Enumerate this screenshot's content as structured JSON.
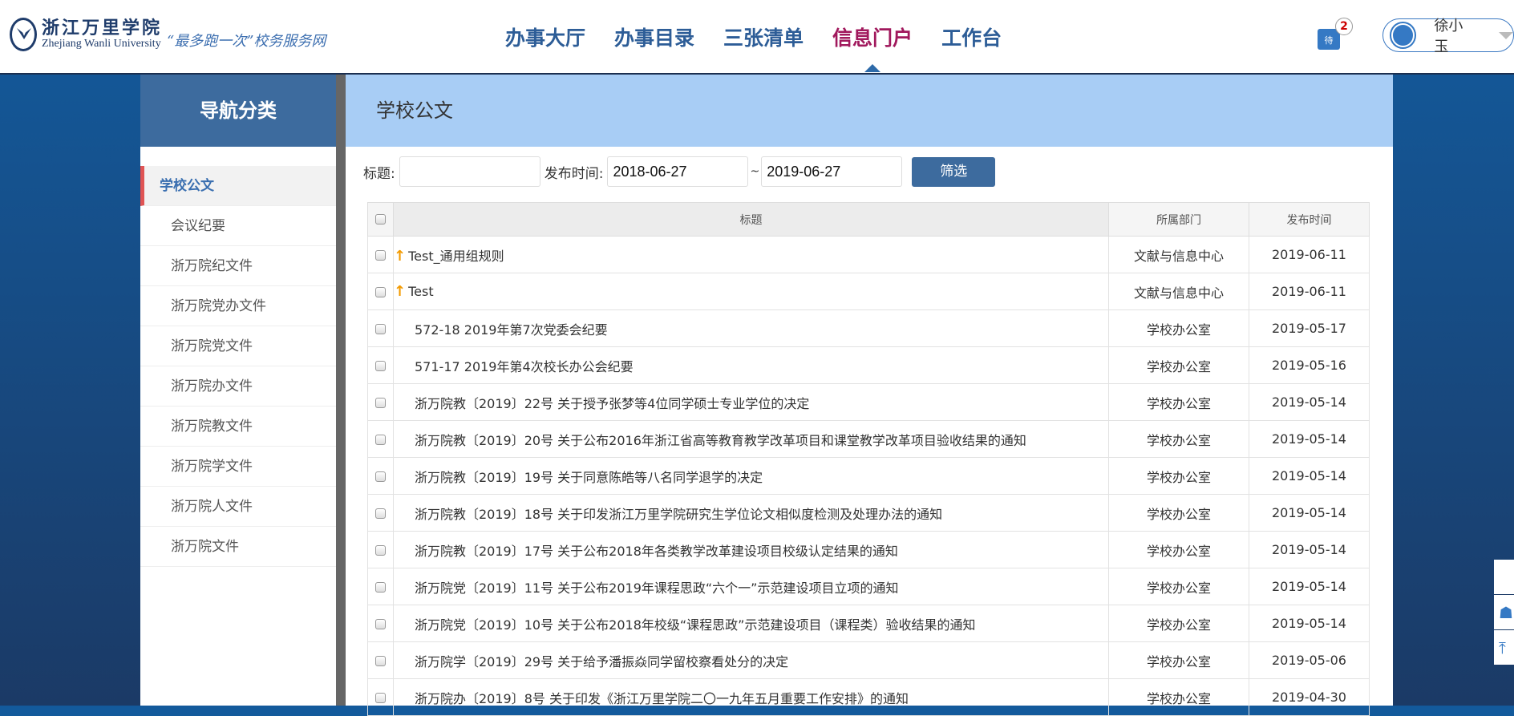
{
  "header": {
    "logo_cn": "浙江万里学院",
    "logo_en": "Zhejiang Wanli University",
    "slogan": "“最多跑一次”校务服务网",
    "nav": [
      {
        "label": "办事大厅"
      },
      {
        "label": "办事目录"
      },
      {
        "label": "三张清单"
      },
      {
        "label": "信息门户",
        "active": true
      },
      {
        "label": "工作台"
      }
    ],
    "todo_icon_label": "待",
    "todo_count": "2",
    "user_name": "徐小玉"
  },
  "sidebar": {
    "title": "导航分类",
    "items": [
      {
        "label": "学校公文",
        "active": true
      },
      {
        "label": "会议纪要"
      },
      {
        "label": "浙万院纪文件"
      },
      {
        "label": "浙万院党办文件"
      },
      {
        "label": "浙万院党文件"
      },
      {
        "label": "浙万院办文件"
      },
      {
        "label": "浙万院教文件"
      },
      {
        "label": "浙万院学文件"
      },
      {
        "label": "浙万院人文件"
      },
      {
        "label": "浙万院文件"
      }
    ]
  },
  "main": {
    "title": "学校公文",
    "filter": {
      "title_label": "标题:",
      "title_value": "",
      "date_label": "发布时间:",
      "date_from": "2018-06-27",
      "sep": "~",
      "date_to": "2019-06-27",
      "button": "筛选"
    },
    "table": {
      "columns": [
        "标题",
        "所属部门",
        "发布时间"
      ],
      "rows": [
        {
          "title": "Test_通用组规则",
          "dept": "文献与信息中心",
          "date": "2019-06-11",
          "top": true
        },
        {
          "title": "Test",
          "dept": "文献与信息中心",
          "date": "2019-06-11",
          "top": true
        },
        {
          "title": "572-18 2019年第7次党委会纪要",
          "dept": "学校办公室",
          "date": "2019-05-17"
        },
        {
          "title": "571-17 2019年第4次校长办公会纪要",
          "dept": "学校办公室",
          "date": "2019-05-16"
        },
        {
          "title": "浙万院教〔2019〕22号 关于授予张梦等4位同学硕士专业学位的决定",
          "dept": "学校办公室",
          "date": "2019-05-14"
        },
        {
          "title": "浙万院教〔2019〕20号 关于公布2016年浙江省高等教育教学改革项目和课堂教学改革项目验收结果的通知",
          "dept": "学校办公室",
          "date": "2019-05-14"
        },
        {
          "title": "浙万院教〔2019〕19号 关于同意陈皓等八名同学退学的决定",
          "dept": "学校办公室",
          "date": "2019-05-14"
        },
        {
          "title": "浙万院教〔2019〕18号 关于印发浙江万里学院研究生学位论文相似度检测及处理办法的通知",
          "dept": "学校办公室",
          "date": "2019-05-14"
        },
        {
          "title": "浙万院教〔2019〕17号 关于公布2018年各类教学改革建设项目校级认定结果的通知",
          "dept": "学校办公室",
          "date": "2019-05-14"
        },
        {
          "title": "浙万院党〔2019〕11号 关于公布2019年课程思政“六个一”示范建设项目立项的通知",
          "dept": "学校办公室",
          "date": "2019-05-14"
        },
        {
          "title": "浙万院党〔2019〕10号 关于公布2018年校级“课程思政”示范建设项目（课程类）验收结果的通知",
          "dept": "学校办公室",
          "date": "2019-05-14"
        },
        {
          "title": "浙万院学〔2019〕29号 关于给予潘振焱同学留校察看处分的决定",
          "dept": "学校办公室",
          "date": "2019-05-06"
        },
        {
          "title": "浙万院办〔2019〕8号 关于印发《浙江万里学院二〇一九年五月重要工作安排》的通知",
          "dept": "学校办公室",
          "date": "2019-04-30"
        }
      ]
    }
  },
  "float_tools": [
    "apple-icon",
    "android-icon",
    "back-to-top-icon"
  ]
}
